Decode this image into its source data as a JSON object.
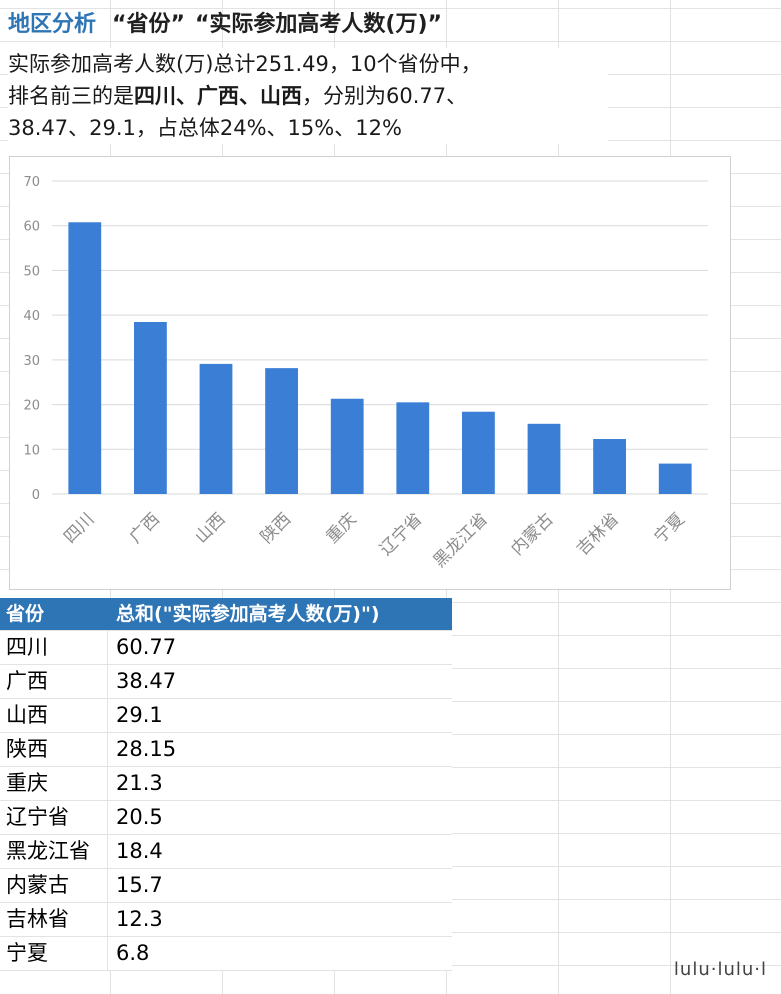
{
  "header": {
    "title_region": "地区分析",
    "title_dim": "“省份”",
    "title_measure": "“实际参加高考人数(万)”"
  },
  "summary": {
    "line1": "实际参加高考人数(万)总计251.49，10个省份中，",
    "line2_prefix": "排名前三的是",
    "top1": "四川",
    "sep1": "、",
    "top2": "广西",
    "sep2": "、",
    "top3": "山西",
    "line2_suffix": "，分别为60.77、",
    "line3": "38.47、29.1，占总体24%、15%、12%"
  },
  "chart_data": {
    "type": "bar",
    "categories": [
      "四川",
      "广西",
      "山西",
      "陕西",
      "重庆",
      "辽宁省",
      "黑龙江省",
      "内蒙古",
      "吉林省",
      "宁夏"
    ],
    "values": [
      60.77,
      38.47,
      29.1,
      28.15,
      21.3,
      20.5,
      18.4,
      15.7,
      12.3,
      6.8
    ],
    "yticks": [
      "0",
      "10",
      "20",
      "30",
      "40",
      "50",
      "60",
      "70"
    ],
    "ylim": [
      0,
      70
    ],
    "grid": true,
    "bar_color": "#3a7fd5",
    "title": "",
    "xlabel": "",
    "ylabel": ""
  },
  "table": {
    "header": [
      "省份",
      "总和(\"实际参加高考人数(万)\")"
    ],
    "rows": [
      [
        "四川",
        "60.77"
      ],
      [
        "广西",
        "38.47"
      ],
      [
        "山西",
        "29.1"
      ],
      [
        "陕西",
        "28.15"
      ],
      [
        "重庆",
        "21.3"
      ],
      [
        "辽宁省",
        "20.5"
      ],
      [
        "黑龙江省",
        "18.4"
      ],
      [
        "内蒙古",
        "15.7"
      ],
      [
        "吉林省",
        "12.3"
      ],
      [
        "宁夏",
        "6.8"
      ]
    ]
  },
  "watermark": "lulu·lulu·l",
  "colors": {
    "accent": "#2e75b6",
    "bar": "#3a7fd5",
    "grid": "#d9d9d9",
    "tick_label": "#8c8c8c"
  }
}
